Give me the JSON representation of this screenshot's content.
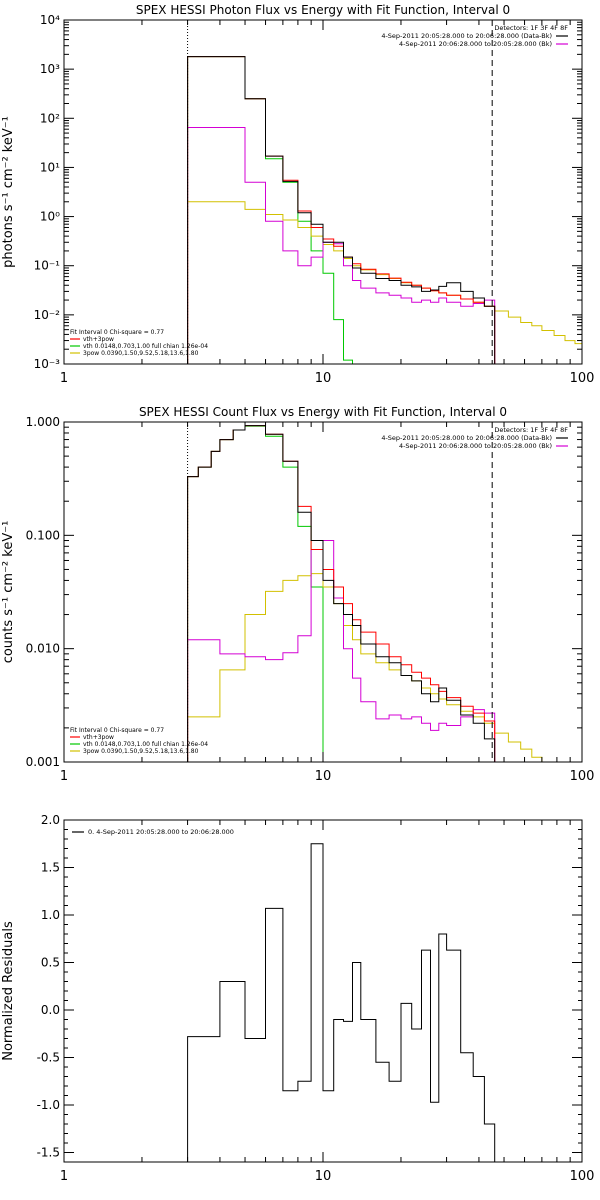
{
  "chart_data": [
    {
      "type": "step-line",
      "title": "SPEX HESSI Photon Flux vs Energy with Fit Function, Interval 0",
      "xlabel": "",
      "ylabel": "photons s⁻¹ cm⁻² keV⁻¹",
      "xscale": "log",
      "yscale": "log",
      "xlim": [
        1,
        100
      ],
      "ylim": [
        0.001,
        10000
      ],
      "x_tick_labels": [
        "1",
        "10",
        "100"
      ],
      "y_tick_labels": [
        "10⁻³",
        "10⁻²",
        "10⁻¹",
        "10⁰",
        "10¹",
        "10²",
        "10³",
        "10⁴"
      ],
      "y_ticks": [
        0.001,
        0.01,
        0.1,
        1,
        10,
        100,
        1000,
        10000
      ],
      "legend_top": {
        "position": "top-right",
        "header": "Detectors: 1F 3F 4F 8F",
        "entries": [
          {
            "label": "4-Sep-2011 20:05:28.000 to 20:06:28.000 (Data-Bk)",
            "color": "#000000"
          },
          {
            "label": "4-Sep-2011 20:06:28.000 to 20:05:28.000 (Bk)",
            "color": "#d400d4"
          }
        ]
      },
      "legend_fit": {
        "position": "bottom-left",
        "header": "Fit Interval 0   Chi-square = 0.77",
        "entries": [
          {
            "label": "vth+3pow",
            "color": "#ff0000"
          },
          {
            "label": "vth 0.0148,0.703,1.00  full chian 1.26e-04",
            "color": "#00c800"
          },
          {
            "label": "3pow 0.0390,1.50,9.52,5.18,13.6,1.80",
            "color": "#d2c000"
          }
        ]
      },
      "vlines": [
        {
          "x": 3,
          "style": "dotted"
        },
        {
          "x": 45,
          "style": "dashed"
        }
      ],
      "series": [
        {
          "color": "#00c800",
          "edges": [
            3,
            4,
            5,
            6,
            7,
            8,
            9,
            10,
            11,
            12,
            13
          ],
          "values": [
            1800,
            1800,
            250,
            15,
            5,
            0.8,
            0.2,
            0.07,
            0.008,
            0.0012
          ]
        },
        {
          "color": "#d2c000",
          "edges": [
            3,
            4,
            5,
            6,
            7,
            8,
            9,
            10,
            11,
            12,
            13,
            14,
            16,
            18,
            20,
            22,
            24,
            26,
            28,
            30,
            34,
            38,
            42,
            46,
            52,
            58,
            64,
            70,
            78,
            86,
            94,
            100
          ],
          "values": [
            2,
            2,
            1.4,
            1.1,
            0.85,
            0.6,
            0.4,
            0.27,
            0.2,
            0.14,
            0.1,
            0.082,
            0.066,
            0.055,
            0.045,
            0.04,
            0.035,
            0.031,
            0.028,
            0.025,
            0.021,
            0.018,
            0.015,
            0.012,
            0.009,
            0.007,
            0.006,
            0.0048,
            0.0038,
            0.003,
            0.0026
          ]
        },
        {
          "color": "#d400d4",
          "edges": [
            3,
            4,
            5,
            6,
            7,
            8,
            9,
            10,
            11,
            12,
            13,
            14,
            16,
            18,
            20,
            22,
            24,
            26,
            28,
            30,
            34,
            38,
            42,
            46
          ],
          "values": [
            65,
            65,
            5,
            0.8,
            0.2,
            0.1,
            0.15,
            0.3,
            0.28,
            0.1,
            0.05,
            0.035,
            0.028,
            0.025,
            0.022,
            0.018,
            0.02,
            0.018,
            0.022,
            0.018,
            0.015,
            0.017,
            0.02
          ]
        },
        {
          "color": "#ff0000",
          "edges": [
            3,
            4,
            5,
            6,
            7,
            8,
            9,
            10,
            11,
            12,
            13,
            14,
            16,
            18,
            20,
            22,
            24,
            26,
            28,
            30,
            34,
            38,
            42,
            46
          ],
          "values": [
            1800,
            1800,
            250,
            17,
            5.5,
            1.3,
            0.6,
            0.35,
            0.25,
            0.15,
            0.11,
            0.085,
            0.068,
            0.056,
            0.046,
            0.04,
            0.035,
            0.031,
            0.028,
            0.025,
            0.021,
            0.018,
            0.015
          ]
        },
        {
          "color": "#000000",
          "edges": [
            3,
            4,
            5,
            6,
            7,
            8,
            9,
            10,
            11,
            12,
            13,
            14,
            16,
            18,
            20,
            22,
            24,
            26,
            28,
            30,
            34,
            38,
            42,
            46
          ],
          "values": [
            1800,
            1800,
            250,
            17,
            5.2,
            1.2,
            0.7,
            0.3,
            0.3,
            0.15,
            0.09,
            0.07,
            0.055,
            0.05,
            0.04,
            0.037,
            0.03,
            0.032,
            0.038,
            0.045,
            0.03,
            0.022,
            0.015
          ]
        }
      ]
    },
    {
      "type": "step-line",
      "title": "SPEX HESSI Count Flux vs Energy with Fit Function, Interval 0",
      "xlabel": "",
      "ylabel": "counts s⁻¹ cm⁻² keV⁻¹",
      "xscale": "log",
      "yscale": "log",
      "xlim": [
        1,
        100
      ],
      "ylim": [
        0.001,
        1
      ],
      "x_tick_labels": [
        "1",
        "10",
        "100"
      ],
      "y_tick_labels": [
        "0.001",
        "0.010",
        "0.100",
        "1.000"
      ],
      "y_ticks": [
        0.001,
        0.01,
        0.1,
        1
      ],
      "legend_top": {
        "position": "top-right",
        "header": "Detectors: 1F 3F 4F 8F",
        "entries": [
          {
            "label": "4-Sep-2011 20:05:28.000 to 20:06:28.000 (Data-Bk)",
            "color": "#000000"
          },
          {
            "label": "4-Sep-2011 20:06:28.000 to 20:05:28.000 (Bk)",
            "color": "#d400d4"
          }
        ]
      },
      "legend_fit": {
        "position": "bottom-left",
        "header": "Fit Interval 0   Chi-square = 0.77",
        "entries": [
          {
            "label": "vth+3pow",
            "color": "#ff0000"
          },
          {
            "label": "vth 0.0148,0.703,1.00  full chian 1.26e-04",
            "color": "#00c800"
          },
          {
            "label": "3pow 0.0390,1.50,9.52,5.18,13.6,1.80",
            "color": "#d2c000"
          }
        ]
      },
      "vlines": [
        {
          "x": 3,
          "style": "dotted"
        },
        {
          "x": 45,
          "style": "dashed"
        }
      ],
      "series": [
        {
          "color": "#00c800",
          "edges": [
            3,
            3.3,
            3.7,
            4,
            4.5,
            5,
            6,
            7,
            8,
            9,
            10,
            11
          ],
          "values": [
            0.33,
            0.4,
            0.55,
            0.7,
            0.85,
            0.92,
            0.75,
            0.4,
            0.12,
            0.035,
            0.001
          ]
        },
        {
          "color": "#d2c000",
          "edges": [
            3,
            4,
            5,
            6,
            7,
            8,
            9,
            10,
            11,
            12,
            13,
            14,
            16,
            18,
            20,
            22,
            24,
            26,
            28,
            30,
            34,
            38,
            42,
            46,
            52,
            58,
            64,
            70,
            78
          ],
          "values": [
            0.0025,
            0.0065,
            0.02,
            0.032,
            0.04,
            0.044,
            0.046,
            0.035,
            0.025,
            0.016,
            0.012,
            0.009,
            0.0075,
            0.0065,
            0.0058,
            0.0052,
            0.0045,
            0.004,
            0.0036,
            0.0032,
            0.0028,
            0.0025,
            0.0022,
            0.0018,
            0.0015,
            0.0013,
            0.0011,
            0.001
          ]
        },
        {
          "color": "#d400d4",
          "edges": [
            3,
            4,
            5,
            6,
            7,
            8,
            9,
            10,
            11,
            12,
            13,
            14,
            16,
            18,
            20,
            22,
            24,
            26,
            28,
            30,
            34,
            38,
            42,
            46
          ],
          "values": [
            0.012,
            0.009,
            0.0085,
            0.008,
            0.0092,
            0.013,
            0.075,
            0.09,
            0.028,
            0.01,
            0.0055,
            0.0034,
            0.0024,
            0.0026,
            0.0024,
            0.0025,
            0.0022,
            0.0019,
            0.0022,
            0.0021,
            0.0025,
            0.0029,
            0.0027
          ]
        },
        {
          "color": "#ff0000",
          "edges": [
            3,
            3.3,
            3.7,
            4,
            4.5,
            5,
            6,
            7,
            8,
            9,
            10,
            11,
            12,
            13,
            14,
            16,
            18,
            20,
            22,
            24,
            26,
            28,
            30,
            34,
            38,
            42,
            46
          ],
          "values": [
            0.33,
            0.4,
            0.55,
            0.7,
            0.85,
            0.93,
            0.78,
            0.45,
            0.18,
            0.075,
            0.05,
            0.035,
            0.025,
            0.018,
            0.014,
            0.011,
            0.0085,
            0.0072,
            0.0062,
            0.0055,
            0.0048,
            0.0042,
            0.0037,
            0.0031,
            0.0027,
            0.0023
          ]
        },
        {
          "color": "#000000",
          "edges": [
            3,
            3.3,
            3.7,
            4,
            4.5,
            5,
            6,
            7,
            8,
            9,
            10,
            11,
            12,
            13,
            14,
            16,
            18,
            20,
            22,
            24,
            26,
            28,
            30,
            34,
            38,
            42,
            46
          ],
          "values": [
            0.33,
            0.4,
            0.55,
            0.7,
            0.85,
            0.93,
            0.78,
            0.45,
            0.16,
            0.09,
            0.04,
            0.025,
            0.02,
            0.016,
            0.011,
            0.0085,
            0.0075,
            0.0058,
            0.0052,
            0.004,
            0.0034,
            0.0045,
            0.0035,
            0.0026,
            0.0022,
            0.0016
          ]
        }
      ]
    },
    {
      "type": "step-line",
      "title": "",
      "xlabel": "",
      "ylabel": "Normalized Residuals",
      "xscale": "log",
      "yscale": "linear",
      "xlim": [
        1,
        100
      ],
      "ylim": [
        -1.6,
        2.0
      ],
      "x_tick_labels": [
        "1",
        "10",
        "100"
      ],
      "y_tick_labels": [
        "-1.5",
        "-1.0",
        "-0.5",
        "0.0",
        "0.5",
        "1.0",
        "1.5",
        "2.0"
      ],
      "y_ticks": [
        -1.5,
        -1.0,
        -0.5,
        0.0,
        0.5,
        1.0,
        1.5,
        2.0
      ],
      "legend_top": {
        "position": "top-left",
        "header": "",
        "entries": [
          {
            "label": "0.  4-Sep-2011 20:05:28.000 to 20:06:28.000",
            "color": "#000000"
          }
        ]
      },
      "series": [
        {
          "color": "#000000",
          "edges": [
            3,
            4,
            5,
            6,
            7,
            8,
            9,
            10,
            11,
            12,
            13,
            14,
            16,
            18,
            20,
            22,
            24,
            26,
            28,
            30,
            34,
            38,
            42,
            46
          ],
          "values": [
            -0.28,
            0.3,
            -0.3,
            1.07,
            -0.85,
            -0.75,
            1.75,
            -0.85,
            -0.1,
            -0.12,
            0.5,
            -0.1,
            -0.55,
            -0.75,
            0.07,
            -0.2,
            0.63,
            -0.97,
            0.8,
            0.63,
            -0.45,
            -0.7,
            -1.2
          ]
        }
      ]
    }
  ]
}
